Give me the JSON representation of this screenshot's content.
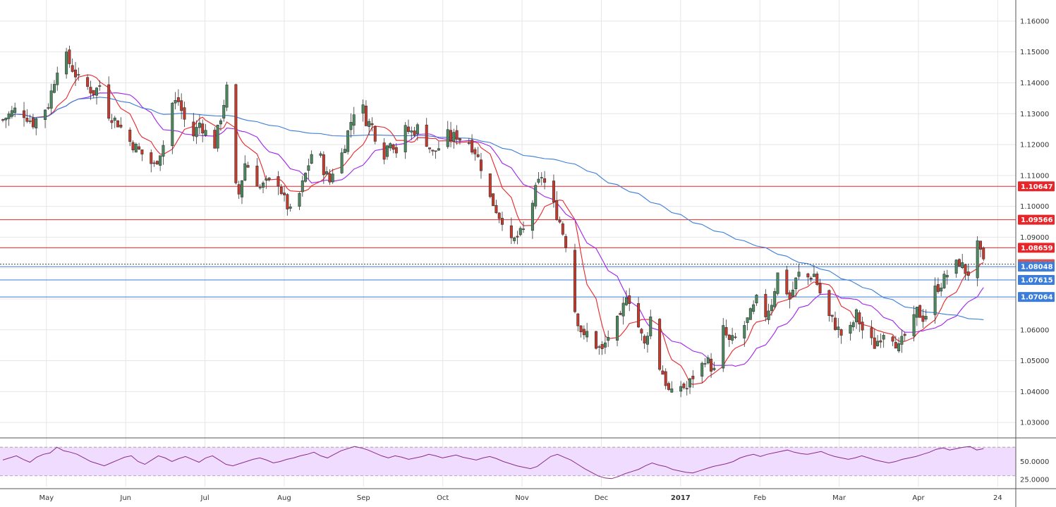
{
  "chart_data": {
    "type": "candlestick",
    "price_axis": {
      "ticks": [
        "1.16000",
        "1.15000",
        "1.14000",
        "1.13000",
        "1.12000",
        "1.11000",
        "1.10000",
        "1.09000",
        "1.06000",
        "1.05000",
        "1.04000",
        "1.03000"
      ],
      "tick_values": [
        1.16,
        1.15,
        1.14,
        1.13,
        1.12,
        1.11,
        1.1,
        1.09,
        1.06,
        1.05,
        1.04,
        1.03
      ],
      "range": [
        1.025,
        1.165
      ]
    },
    "time_axis": {
      "labels": [
        "May",
        "Jun",
        "Jul",
        "Aug",
        "Sep",
        "Oct",
        "Nov",
        "Dec",
        "2017",
        "Feb",
        "Mar",
        "Apr",
        "24"
      ],
      "bold_labels": [
        "2017"
      ],
      "range_days": [
        0,
        330
      ]
    },
    "horizontal_levels": [
      {
        "label": "1.10647",
        "value": 1.10647,
        "color": "#e8262a",
        "kind": "resistance"
      },
      {
        "label": "1.09566",
        "value": 1.09566,
        "color": "#e8262a",
        "kind": "resistance"
      },
      {
        "label": "1.08659",
        "value": 1.08659,
        "color": "#e8262a",
        "kind": "resistance"
      },
      {
        "label": "1.08127",
        "value": 1.08127,
        "color": "#d9534f",
        "kind": "last-price"
      },
      {
        "label": "1.08048",
        "value": 1.08048,
        "color": "#3b7dd8",
        "kind": "support"
      },
      {
        "label": "1.07615",
        "value": 1.07615,
        "color": "#3b7dd8",
        "kind": "support"
      },
      {
        "label": "1.07064",
        "value": 1.07064,
        "color": "#3b7dd8",
        "kind": "support"
      }
    ],
    "close_path": [
      [
        0,
        1.128
      ],
      [
        5,
        1.132
      ],
      [
        10,
        1.127
      ],
      [
        15,
        1.133
      ],
      [
        18,
        1.145
      ],
      [
        20,
        1.15
      ],
      [
        25,
        1.141
      ],
      [
        30,
        1.137
      ],
      [
        33,
        1.14
      ],
      [
        35,
        1.13
      ],
      [
        38,
        1.127
      ],
      [
        42,
        1.121
      ],
      [
        45,
        1.118
      ],
      [
        50,
        1.113
      ],
      [
        53,
        1.12
      ],
      [
        55,
        1.133
      ],
      [
        58,
        1.134
      ],
      [
        60,
        1.128
      ],
      [
        63,
        1.123
      ],
      [
        65,
        1.127
      ],
      [
        67,
        1.124
      ],
      [
        70,
        1.12
      ],
      [
        72,
        1.129
      ],
      [
        74,
        1.138
      ],
      [
        76,
        1.108
      ],
      [
        78,
        1.104
      ],
      [
        80,
        1.114
      ],
      [
        82,
        1.112
      ],
      [
        85,
        1.106
      ],
      [
        88,
        1.108
      ],
      [
        90,
        1.111
      ],
      [
        93,
        1.102
      ],
      [
        95,
        1.098
      ],
      [
        97,
        1.101
      ],
      [
        99,
        1.107
      ],
      [
        102,
        1.117
      ],
      [
        104,
        1.119
      ],
      [
        106,
        1.112
      ],
      [
        108,
        1.108
      ],
      [
        110,
        1.115
      ],
      [
        112,
        1.117
      ],
      [
        114,
        1.124
      ],
      [
        116,
        1.131
      ],
      [
        118,
        1.135
      ],
      [
        120,
        1.128
      ],
      [
        122,
        1.126
      ],
      [
        124,
        1.12
      ],
      [
        126,
        1.117
      ],
      [
        128,
        1.122
      ],
      [
        130,
        1.118
      ],
      [
        132,
        1.125
      ],
      [
        135,
        1.124
      ],
      [
        138,
        1.126
      ],
      [
        140,
        1.121
      ],
      [
        142,
        1.117
      ],
      [
        144,
        1.119
      ],
      [
        146,
        1.124
      ],
      [
        148,
        1.122
      ],
      [
        150,
        1.123
      ],
      [
        152,
        1.121
      ],
      [
        154,
        1.121
      ],
      [
        156,
        1.118
      ],
      [
        158,
        1.113
      ],
      [
        160,
        1.104
      ],
      [
        162,
        1.101
      ],
      [
        164,
        1.097
      ],
      [
        166,
        1.095
      ],
      [
        168,
        1.088
      ],
      [
        170,
        1.09
      ],
      [
        172,
        1.092
      ],
      [
        174,
        1.098
      ],
      [
        176,
        1.105
      ],
      [
        178,
        1.11
      ],
      [
        180,
        1.105
      ],
      [
        182,
        1.1
      ],
      [
        184,
        1.095
      ],
      [
        186,
        1.088
      ],
      [
        188,
        1.07
      ],
      [
        190,
        1.063
      ],
      [
        192,
        1.057
      ],
      [
        194,
        1.061
      ],
      [
        196,
        1.055
      ],
      [
        198,
        1.053
      ],
      [
        200,
        1.058
      ],
      [
        202,
        1.062
      ],
      [
        204,
        1.063
      ],
      [
        206,
        1.072
      ],
      [
        208,
        1.068
      ],
      [
        210,
        1.061
      ],
      [
        212,
        1.055
      ],
      [
        214,
        1.064
      ],
      [
        216,
        1.05
      ],
      [
        218,
        1.046
      ],
      [
        220,
        1.04
      ],
      [
        222,
        1.038
      ],
      [
        224,
        1.042
      ],
      [
        226,
        1.041
      ],
      [
        228,
        1.045
      ],
      [
        230,
        1.046
      ],
      [
        232,
        1.051
      ],
      [
        234,
        1.048
      ],
      [
        236,
        1.045
      ],
      [
        238,
        1.06
      ],
      [
        240,
        1.056
      ],
      [
        242,
        1.057
      ],
      [
        244,
        1.06
      ],
      [
        246,
        1.063
      ],
      [
        248,
        1.067
      ],
      [
        250,
        1.072
      ],
      [
        252,
        1.065
      ],
      [
        254,
        1.069
      ],
      [
        256,
        1.078
      ],
      [
        258,
        1.075
      ],
      [
        260,
        1.07
      ],
      [
        262,
        1.076
      ],
      [
        264,
        1.08
      ],
      [
        266,
        1.077
      ],
      [
        268,
        1.078
      ],
      [
        270,
        1.072
      ],
      [
        272,
        1.065
      ],
      [
        274,
        1.063
      ],
      [
        276,
        1.06
      ],
      [
        278,
        1.057
      ],
      [
        280,
        1.06
      ],
      [
        282,
        1.065
      ],
      [
        284,
        1.06
      ],
      [
        286,
        1.057
      ],
      [
        288,
        1.055
      ],
      [
        290,
        1.058
      ],
      [
        292,
        1.061
      ],
      [
        294,
        1.058
      ],
      [
        296,
        1.054
      ],
      [
        298,
        1.058
      ],
      [
        300,
        1.06
      ],
      [
        302,
        1.066
      ],
      [
        304,
        1.064
      ],
      [
        306,
        1.066
      ],
      [
        308,
        1.073
      ],
      [
        310,
        1.075
      ],
      [
        312,
        1.078
      ],
      [
        314,
        1.08
      ],
      [
        316,
        1.082
      ],
      [
        318,
        1.079
      ],
      [
        320,
        1.078
      ],
      [
        322,
        1.087
      ],
      [
        324,
        1.0813
      ]
    ],
    "moving_averages": [
      {
        "color": "#e8262a",
        "period": "fast"
      },
      {
        "color": "#a020f0",
        "period": "medium"
      },
      {
        "color": "#3b7dd8",
        "period": "slow"
      }
    ],
    "rsi": {
      "ticks": [
        "50.0000",
        "25.0000"
      ],
      "tick_values": [
        50,
        25
      ],
      "range": [
        15,
        82
      ],
      "band": [
        30,
        70
      ],
      "band_color": "#f0dcff",
      "line_color": "#8b2b8b",
      "values": [
        52,
        55,
        58,
        53,
        49,
        56,
        60,
        62,
        70,
        65,
        63,
        60,
        55,
        50,
        47,
        44,
        48,
        52,
        56,
        58,
        50,
        46,
        52,
        58,
        55,
        50,
        54,
        57,
        53,
        49,
        55,
        58,
        52,
        46,
        44,
        47,
        50,
        53,
        55,
        52,
        48,
        50,
        53,
        55,
        58,
        60,
        63,
        58,
        55,
        60,
        65,
        68,
        71,
        69,
        66,
        62,
        58,
        55,
        58,
        56,
        53,
        55,
        57,
        60,
        58,
        55,
        57,
        59,
        56,
        54,
        52,
        55,
        57,
        54,
        50,
        47,
        44,
        42,
        40,
        43,
        50,
        57,
        60,
        56,
        52,
        46,
        40,
        35,
        30,
        27,
        26,
        29,
        33,
        36,
        39,
        44,
        48,
        45,
        43,
        39,
        37,
        35,
        34,
        37,
        40,
        43,
        45,
        47,
        50,
        55,
        58,
        60,
        57,
        60,
        62,
        64,
        66,
        63,
        61,
        60,
        62,
        64,
        60,
        57,
        55,
        53,
        55,
        58,
        55,
        52,
        50,
        48,
        50,
        53,
        55,
        57,
        60,
        63,
        67,
        69,
        66,
        68,
        70,
        71,
        66,
        68
      ],
      "current": 67
    },
    "title": "",
    "xlabel": "",
    "ylabel": "",
    "grid": true,
    "up_color": "#4a8a5e",
    "down_color": "#c9392c"
  }
}
